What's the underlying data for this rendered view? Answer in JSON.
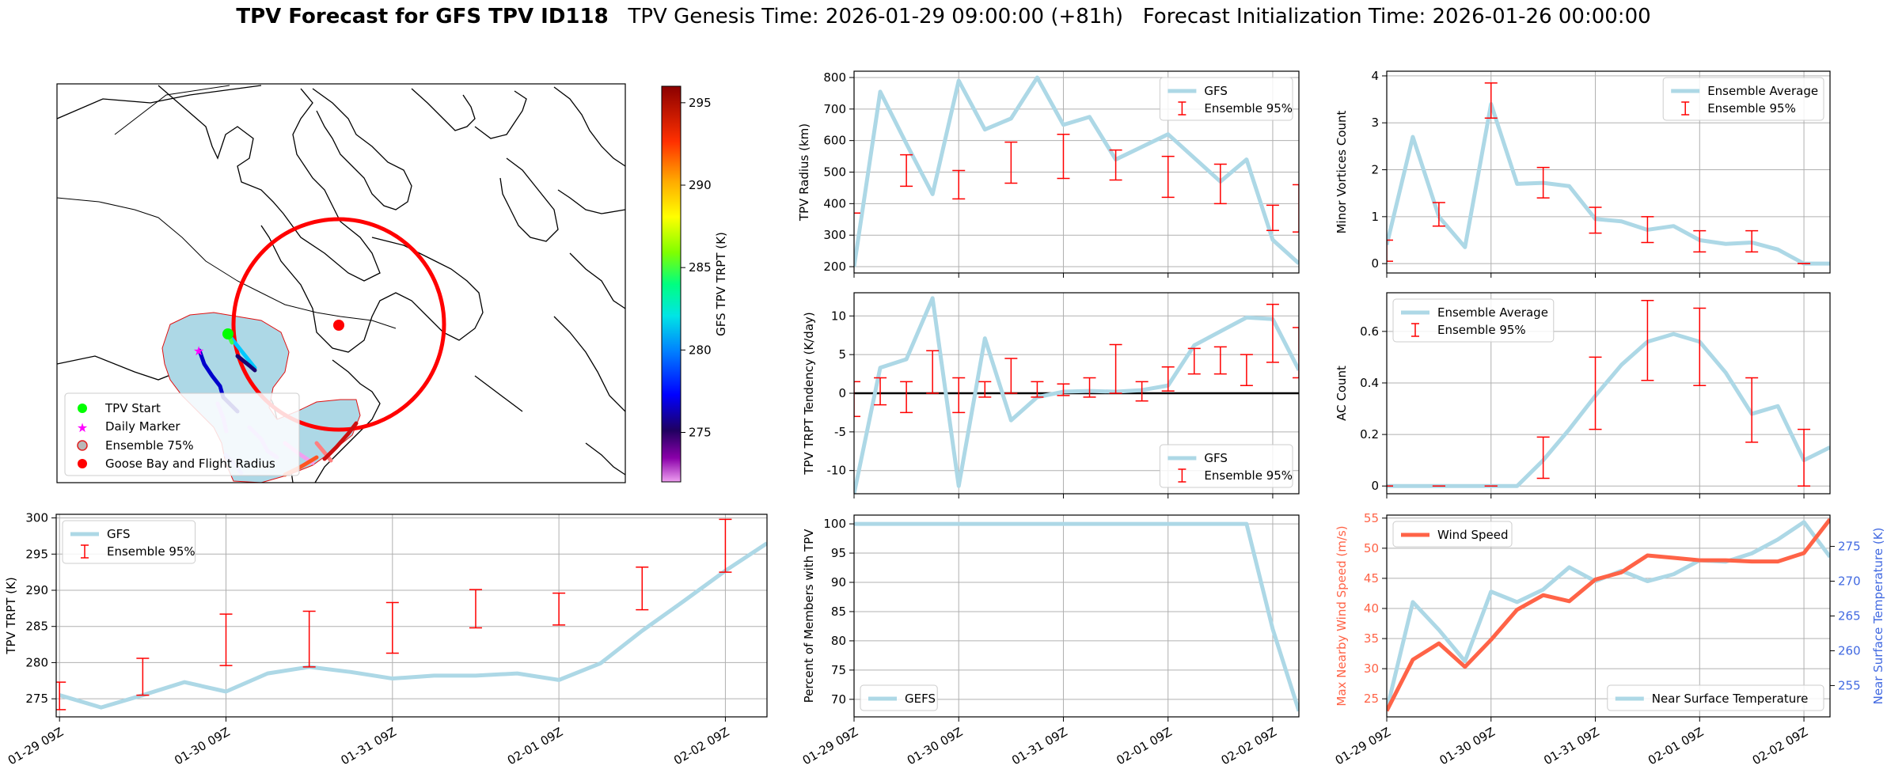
{
  "figure": {
    "title_bold": "TPV Forecast for GFS TPV ID118",
    "title_genesis": "TPV Genesis Time: 2026-01-29 09:00:00 (+81h)",
    "title_init": "Forecast Initialization Time: 2026-01-26 00:00:00",
    "x_tick_labels": [
      "01-29 09Z",
      "01-30 09Z",
      "01-31 09Z",
      "02-01 09Z",
      "02-02 09Z"
    ]
  },
  "colors": {
    "gfs_line": "#add8e6",
    "ensemble_err": "#ff0000",
    "wind": "#ff6347",
    "temp_axis": "#4169e1"
  },
  "chart_data": [
    {
      "id": "map",
      "type": "map",
      "colorbar": {
        "label": "GFS TPV TRPT (K)",
        "range": [
          272,
          296
        ],
        "ticks": [
          275,
          280,
          285,
          290,
          295
        ]
      },
      "legend": [
        "TPV Start",
        "Daily Marker",
        "Ensemble 75%",
        "Goose Bay and Flight Radius"
      ]
    },
    {
      "id": "trpt",
      "type": "line",
      "ylabel": "TPV TRPT (K)",
      "ylim": [
        272.5,
        300.5
      ],
      "yticks": [
        275,
        280,
        285,
        290,
        295,
        300
      ],
      "series_name": "GFS",
      "err_name": "Ensemble 95%",
      "x": [
        0,
        0.25,
        0.5,
        0.75,
        1,
        1.25,
        1.5,
        1.75,
        2,
        2.25,
        2.5,
        2.75,
        3,
        3.25,
        3.5,
        3.75,
        4,
        4.25
      ],
      "y": [
        275.5,
        273.8,
        275.5,
        277.3,
        276.0,
        278.5,
        279.4,
        278.7,
        277.8,
        278.2,
        278.2,
        278.5,
        277.6,
        279.9,
        284.4,
        288.5,
        292.7,
        296.5
      ],
      "err_x": [
        0,
        0.5,
        1,
        1.5,
        2,
        2.5,
        3,
        3.5,
        4
      ],
      "err_lo": [
        273.5,
        275.5,
        279.6,
        279.4,
        281.3,
        284.8,
        285.2,
        287.3,
        292.5
      ],
      "err_hi": [
        277.3,
        280.6,
        286.7,
        287.1,
        288.3,
        290.1,
        289.6,
        293.2,
        299.8
      ]
    },
    {
      "id": "radius",
      "type": "line",
      "ylabel": "TPV Radius (km)",
      "ylim": [
        180,
        820
      ],
      "yticks": [
        200,
        300,
        400,
        500,
        600,
        700,
        800
      ],
      "series_name": "GFS",
      "err_name": "Ensemble 95%",
      "x": [
        0,
        0.25,
        0.5,
        0.75,
        1,
        1.25,
        1.5,
        1.75,
        2,
        2.25,
        2.5,
        2.75,
        3,
        3.25,
        3.5,
        3.75,
        4,
        4.25
      ],
      "y": [
        200,
        755,
        590,
        430,
        790,
        635,
        670,
        800,
        650,
        675,
        540,
        580,
        620,
        545,
        470,
        540,
        285,
        210
      ],
      "err_x": [
        0,
        0.5,
        1,
        1.5,
        2,
        2.5,
        3,
        3.5,
        4,
        4.25
      ],
      "err_lo": [
        370,
        455,
        415,
        465,
        480,
        475,
        420,
        400,
        315,
        310
      ],
      "err_hi": [
        370,
        555,
        505,
        595,
        620,
        570,
        550,
        525,
        395,
        460
      ]
    },
    {
      "id": "tendency",
      "type": "line",
      "ylabel": "TPV TRPT Tendency (K/day)",
      "ylim": [
        -13,
        13
      ],
      "yticks": [
        -10,
        -5,
        0,
        5,
        10
      ],
      "series_name": "GFS",
      "err_name": "Ensemble 95%",
      "x": [
        0,
        0.25,
        0.5,
        0.75,
        1,
        1.25,
        1.5,
        1.75,
        2,
        2.25,
        2.5,
        2.75,
        3,
        3.25,
        3.5,
        3.75,
        4,
        4.25
      ],
      "y": [
        -13,
        3.3,
        4.4,
        12.3,
        -12,
        7.1,
        -3.5,
        -0.5,
        0.2,
        0.3,
        0.2,
        0.4,
        1.0,
        6.2,
        8.0,
        9.8,
        9.6,
        3.0
      ],
      "err_x": [
        0,
        0.25,
        0.5,
        0.75,
        1,
        1.25,
        1.5,
        1.75,
        2,
        2.25,
        2.5,
        2.75,
        3,
        3.25,
        3.5,
        3.75,
        4,
        4.25
      ],
      "err_lo": [
        -3.0,
        -1.5,
        -2.5,
        0,
        -2.5,
        -0.5,
        0,
        -0.5,
        -0.3,
        -0.5,
        0,
        -1.0,
        0.3,
        2.5,
        2.5,
        1.0,
        4.0,
        2.0
      ],
      "err_hi": [
        1.5,
        2.0,
        1.5,
        5.5,
        2.0,
        1.5,
        4.5,
        1.5,
        1.2,
        2.0,
        6.3,
        1.5,
        3.4,
        5.8,
        6.0,
        5.0,
        11.5,
        8.5
      ]
    },
    {
      "id": "members",
      "type": "line",
      "ylabel": "Percent of Members with TPV",
      "ylim": [
        67,
        101.5
      ],
      "yticks": [
        70,
        75,
        80,
        85,
        90,
        95,
        100
      ],
      "series_name": "GEFS",
      "x": [
        0,
        0.25,
        0.5,
        0.75,
        1,
        1.25,
        1.5,
        1.75,
        2,
        2.25,
        2.5,
        2.75,
        3,
        3.25,
        3.5,
        3.75,
        4,
        4.25
      ],
      "y": [
        100,
        100,
        100,
        100,
        100,
        100,
        100,
        100,
        100,
        100,
        100,
        100,
        100,
        100,
        100,
        100,
        82,
        68
      ]
    },
    {
      "id": "minor",
      "type": "line",
      "ylabel": "Minor Vortices Count",
      "ylim": [
        -0.2,
        4.1
      ],
      "yticks": [
        0,
        1,
        2,
        3,
        4
      ],
      "series_name": "Ensemble Average",
      "err_name": "Ensemble 95%",
      "x": [
        0,
        0.25,
        0.5,
        0.75,
        1,
        1.25,
        1.5,
        1.75,
        2,
        2.25,
        2.5,
        2.75,
        3,
        3.25,
        3.5,
        3.75,
        4,
        4.25
      ],
      "y": [
        0.4,
        2.7,
        1.0,
        0.35,
        3.4,
        1.7,
        1.72,
        1.65,
        0.95,
        0.9,
        0.72,
        0.8,
        0.5,
        0.42,
        0.45,
        0.3,
        0,
        0
      ],
      "err_x": [
        0,
        0.5,
        1,
        1.5,
        2,
        2.5,
        3,
        3.5,
        4
      ],
      "err_lo": [
        0.05,
        0.8,
        3.1,
        1.4,
        0.65,
        0.45,
        0.25,
        0.25,
        0
      ],
      "err_hi": [
        0.5,
        1.3,
        3.85,
        2.05,
        1.2,
        1.0,
        0.7,
        0.7,
        0
      ]
    },
    {
      "id": "ac",
      "type": "line",
      "ylabel": "AC Count",
      "ylim": [
        -0.03,
        0.75
      ],
      "yticks": [
        0.0,
        0.2,
        0.4,
        0.6
      ],
      "series_name": "Ensemble Average",
      "err_name": "Ensemble 95%",
      "x": [
        0,
        0.25,
        0.5,
        0.75,
        1,
        1.25,
        1.5,
        1.75,
        2,
        2.25,
        2.5,
        2.75,
        3,
        3.25,
        3.5,
        3.75,
        4,
        4.25
      ],
      "y": [
        0,
        0,
        0,
        0,
        0,
        0,
        0.1,
        0.22,
        0.35,
        0.47,
        0.56,
        0.59,
        0.56,
        0.44,
        0.28,
        0.31,
        0.1,
        0.15
      ],
      "err_x": [
        0,
        0.5,
        1,
        1.5,
        2,
        2.5,
        3,
        3.5,
        4
      ],
      "err_lo": [
        0,
        0,
        0,
        0.03,
        0.22,
        0.41,
        0.39,
        0.17,
        0
      ],
      "err_hi": [
        0,
        0,
        0,
        0.19,
        0.5,
        0.72,
        0.69,
        0.42,
        0.22
      ]
    },
    {
      "id": "wind",
      "type": "dual_line",
      "ylabel": "Max Nearby Wind Speed (m/s)",
      "ylabel2": "Near Surface Temperature (K)",
      "ylim": [
        22,
        55.5
      ],
      "yticks": [
        25,
        30,
        35,
        40,
        45,
        50,
        55
      ],
      "ylim2": [
        250.5,
        279.5
      ],
      "yticks2": [
        255,
        260,
        265,
        270,
        275
      ],
      "series_name": "Wind Speed",
      "series2_name": "Near Surface Temperature",
      "x": [
        0,
        0.25,
        0.5,
        0.75,
        1,
        1.25,
        1.5,
        1.75,
        2,
        2.25,
        2.5,
        2.75,
        3,
        3.25,
        3.5,
        3.75,
        4,
        4.25
      ],
      "y": [
        23.0,
        31.5,
        34.2,
        30.3,
        34.8,
        39.8,
        42.2,
        41.2,
        44.8,
        46.0,
        48.8,
        48.4,
        48.0,
        48.0,
        47.8,
        47.8,
        49.2,
        54.8
      ],
      "y2": [
        251.5,
        267.0,
        263.0,
        258.5,
        268.5,
        267.0,
        268.8,
        272.0,
        270.0,
        271.5,
        270.0,
        271.0,
        273.0,
        272.8,
        274.0,
        276.0,
        278.5,
        273.5
      ]
    }
  ]
}
